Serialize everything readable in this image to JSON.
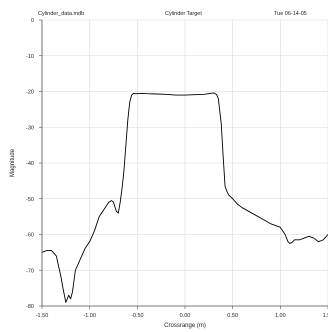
{
  "header": {
    "file": "Cylinder_data.mdb",
    "title": "Cylinder Target",
    "date": "Tue  06-14-05"
  },
  "chart_data": {
    "type": "line",
    "title": "Cylinder Target",
    "xlabel": "Crossrange (m)",
    "ylabel": "Magnitude",
    "xlim": [
      -1.5,
      1.5
    ],
    "ylim": [
      -80,
      0
    ],
    "x_ticks": [
      -1.5,
      -1.0,
      -0.5,
      0.0,
      0.5,
      1.0,
      1.5
    ],
    "x_tick_labels": [
      "-1.50",
      "-1.00",
      "-0.50",
      "0.00",
      "0.50",
      "1.00",
      "1.50"
    ],
    "y_ticks": [
      0,
      -10,
      -20,
      -30,
      -40,
      -50,
      -60,
      -70,
      -80
    ],
    "y_tick_labels": [
      "0",
      "-10",
      "-20",
      "-30",
      "-40",
      "-50",
      "-60",
      "-70",
      "-80"
    ],
    "grid": true,
    "series": [
      {
        "color": "#000000",
        "x": [
          -1.5,
          -1.45,
          -1.4,
          -1.35,
          -1.3,
          -1.28,
          -1.25,
          -1.22,
          -1.2,
          -1.18,
          -1.15,
          -1.1,
          -1.05,
          -1.0,
          -0.95,
          -0.9,
          -0.85,
          -0.8,
          -0.77,
          -0.75,
          -0.72,
          -0.7,
          -0.68,
          -0.66,
          -0.64,
          -0.62,
          -0.6,
          -0.58,
          -0.56,
          -0.54,
          -0.52,
          -0.5,
          -0.45,
          -0.4,
          -0.3,
          -0.2,
          -0.1,
          0.0,
          0.1,
          0.2,
          0.3,
          0.33,
          0.35,
          0.38,
          0.4,
          0.42,
          0.44,
          0.46,
          0.48,
          0.5,
          0.55,
          0.6,
          0.7,
          0.8,
          0.9,
          1.0,
          1.05,
          1.08,
          1.1,
          1.12,
          1.15,
          1.2,
          1.25,
          1.3,
          1.35,
          1.4,
          1.45,
          1.5
        ],
        "y": [
          -65,
          -64.5,
          -64.5,
          -66,
          -72,
          -75,
          -79,
          -77,
          -78,
          -76,
          -70,
          -67,
          -64,
          -62,
          -59,
          -55,
          -53,
          -51,
          -50.5,
          -51,
          -53.5,
          -54,
          -51,
          -47,
          -42,
          -35,
          -28,
          -23,
          -21,
          -20.5,
          -20.6,
          -20.6,
          -20.5,
          -20.6,
          -20.7,
          -20.8,
          -21,
          -21,
          -20.9,
          -20.8,
          -20.4,
          -20.8,
          -22,
          -29,
          -38,
          -46.5,
          -48,
          -49,
          -49.5,
          -50,
          -51.5,
          -52.5,
          -54,
          -55.5,
          -57,
          -58,
          -60,
          -62,
          -62.5,
          -62.3,
          -61.5,
          -61.5,
          -61,
          -60.5,
          -61,
          -62,
          -61.5,
          -60
        ]
      }
    ]
  }
}
